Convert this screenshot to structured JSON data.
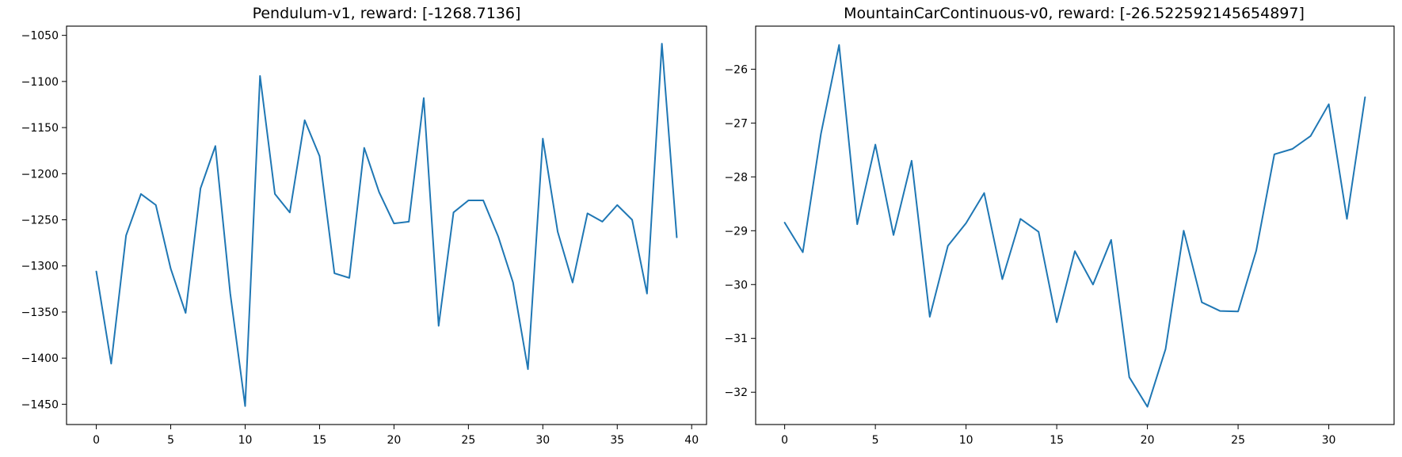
{
  "chart_data": [
    {
      "type": "line",
      "title": "Pendulum-v1, reward: [-1268.7136]",
      "xlabel": "",
      "ylabel": "",
      "xlim": [
        -2,
        41
      ],
      "ylim": [
        -1472,
        -1040
      ],
      "xticks": [
        0,
        5,
        10,
        15,
        20,
        25,
        30,
        35,
        40
      ],
      "yticks": [
        -1450,
        -1400,
        -1350,
        -1300,
        -1250,
        -1200,
        -1150,
        -1100,
        -1050
      ],
      "grid": false,
      "color": "#1f77b4",
      "x": [
        0,
        1,
        2,
        3,
        4,
        5,
        6,
        7,
        8,
        9,
        10,
        11,
        12,
        13,
        14,
        15,
        16,
        17,
        18,
        19,
        20,
        21,
        22,
        23,
        24,
        25,
        26,
        27,
        28,
        29,
        30,
        31,
        32,
        33,
        34,
        35,
        36,
        37,
        38,
        39
      ],
      "values": [
        -1306,
        -1406,
        -1267,
        -1222,
        -1234,
        -1303,
        -1351,
        -1216,
        -1170,
        -1330,
        -1452,
        -1094,
        -1222,
        -1242,
        -1142,
        -1181,
        -1308,
        -1313,
        -1172,
        -1220,
        -1254,
        -1252,
        -1118,
        -1365,
        -1242,
        -1229,
        -1229,
        -1268,
        -1318,
        -1412,
        -1162,
        -1263,
        -1318,
        -1243,
        -1252,
        -1234,
        -1250,
        -1330,
        -1059,
        -1269
      ]
    },
    {
      "type": "line",
      "title": "MountainCarContinuous-v0, reward: [-26.522592145654897]",
      "xlabel": "",
      "ylabel": "",
      "xlim": [
        -1.6,
        33.6
      ],
      "ylim": [
        -32.6,
        -25.2
      ],
      "xticks": [
        0,
        5,
        10,
        15,
        20,
        25,
        30
      ],
      "yticks": [
        -32,
        -31,
        -30,
        -29,
        -28,
        -27,
        -26
      ],
      "grid": false,
      "color": "#1f77b4",
      "x": [
        0,
        1,
        2,
        3,
        4,
        5,
        6,
        7,
        8,
        9,
        10,
        11,
        12,
        13,
        14,
        15,
        16,
        17,
        18,
        19,
        20,
        21,
        22,
        23,
        24,
        25,
        26,
        27,
        28,
        29,
        30,
        31,
        32
      ],
      "values": [
        -28.85,
        -29.4,
        -27.2,
        -25.55,
        -28.88,
        -27.4,
        -29.08,
        -27.7,
        -30.6,
        -29.28,
        -28.86,
        -28.3,
        -29.9,
        -28.78,
        -29.02,
        -30.7,
        -29.38,
        -30.0,
        -29.17,
        -31.72,
        -32.27,
        -31.2,
        -29.0,
        -30.33,
        -30.49,
        -30.5,
        -29.37,
        -27.58,
        -27.48,
        -27.24,
        -26.65,
        -28.78,
        -26.52
      ]
    }
  ]
}
